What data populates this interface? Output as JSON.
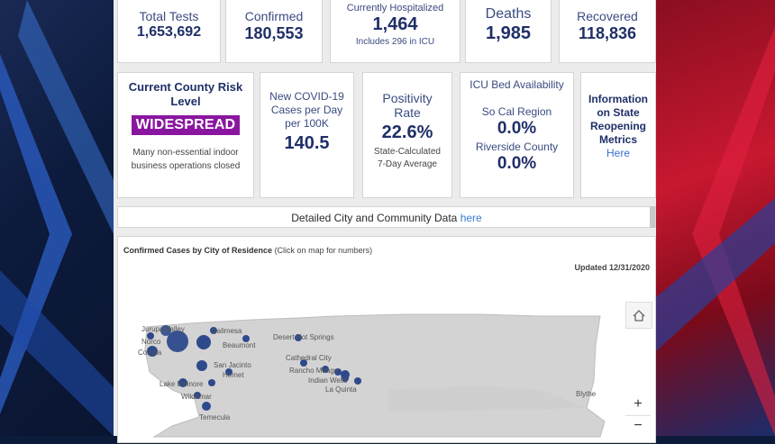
{
  "stats": {
    "total_tests": {
      "label": "Total Tests",
      "value": "1,653,692"
    },
    "confirmed": {
      "label": "Confirmed",
      "value": "180,553"
    },
    "hospitalized": {
      "label": "Currently Hospitalized",
      "value": "1,464",
      "note": "Includes 296 in ICU"
    },
    "deaths": {
      "label": "Deaths",
      "value": "1,985"
    },
    "recovered": {
      "label": "Recovered",
      "value": "118,836"
    }
  },
  "risk": {
    "title": "Current County Risk Level",
    "level": "WIDESPREAD",
    "level_color": "#8a16a0",
    "description": "Many non-essential indoor business operations closed"
  },
  "new_cases": {
    "label": "New COVID-19 Cases per Day per 100K",
    "value": "140.5"
  },
  "positivity": {
    "label": "Positivity Rate",
    "value": "22.6%",
    "note": "State-Calculated 7-Day Average"
  },
  "icu": {
    "title": "ICU Bed Availability",
    "region_label": "So Cal Region",
    "region_value": "0.0%",
    "county_label": "Riverside County",
    "county_value": "0.0%"
  },
  "info": {
    "label": "Information on State Reopening Metrics",
    "link": "Here"
  },
  "detail": {
    "text": "Detailed City and Community Data",
    "link": "here"
  },
  "map": {
    "title": "Confirmed Cases by City of Residence",
    "subtitle": "(Click on map for numbers)",
    "updated": "Updated 12/31/2020",
    "zoom_in": "+",
    "zoom_out": "−",
    "cities": {
      "jurupa": "Jurupa Valley",
      "norco": "Norco",
      "corona": "Corona",
      "calimesa": "Calimesa",
      "beaumont": "Beaumont",
      "san_jacinto": "San Jacinto",
      "hemet": "Hemet",
      "lake_elsinore": "Lake Elsinore",
      "wildomar": "Wildomar",
      "temecula": "Temecula",
      "desert_hot_springs": "Desert Hot Springs",
      "cathedral_city": "Cathedral City",
      "rancho_mirage": "Rancho Mirage",
      "indian_wells": "Indian Wells",
      "la_quinta": "La Quinta",
      "blythe": "Blythe"
    }
  },
  "colors": {
    "accent": "#1f2f68",
    "bubble": "#2e4a8c",
    "link": "#3a7bd5"
  }
}
